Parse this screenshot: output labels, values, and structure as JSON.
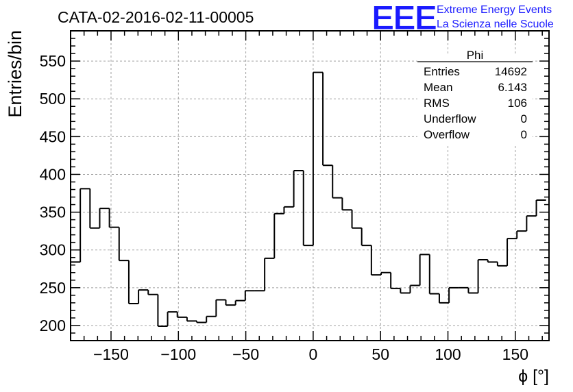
{
  "chart_data": {
    "type": "histogram",
    "title": "CATA-02-2016-02-11-00005",
    "xlabel": "ϕ [°]",
    "ylabel": "Entries/bin",
    "xlim": [
      -180,
      175
    ],
    "ylim": [
      180,
      590
    ],
    "grid": true,
    "x_ticks": [
      -150,
      -100,
      -50,
      0,
      50,
      100,
      150
    ],
    "y_ticks": [
      200,
      250,
      300,
      350,
      400,
      450,
      500,
      550
    ],
    "bin_width": 7.2,
    "bin_edges_start": -180,
    "values": [
      284,
      381,
      329,
      355,
      330,
      286,
      229,
      247,
      241,
      199,
      218,
      211,
      206,
      204,
      212,
      234,
      227,
      233,
      246,
      246,
      289,
      348,
      357,
      405,
      306,
      535,
      412,
      369,
      353,
      329,
      306,
      267,
      270,
      249,
      243,
      253,
      294,
      242,
      230,
      250,
      250,
      243,
      287,
      284,
      279,
      315,
      325,
      345,
      366
    ],
    "stats_box": {
      "title": "Phi",
      "rows": [
        {
          "label": "Entries",
          "value": "14692"
        },
        {
          "label": "Mean",
          "value": "6.143"
        },
        {
          "label": "RMS",
          "value": "106"
        },
        {
          "label": "Underflow",
          "value": "0"
        },
        {
          "label": "Overflow",
          "value": "0"
        }
      ]
    }
  },
  "logo": {
    "text": "EEE",
    "line1": "Extreme Energy Events",
    "line2": "La Scienza nelle Scuole",
    "color": "#1a1aff"
  },
  "colors": {
    "line": "#000000",
    "grid": "#a0a0a0",
    "logo": "#1a1aff"
  }
}
